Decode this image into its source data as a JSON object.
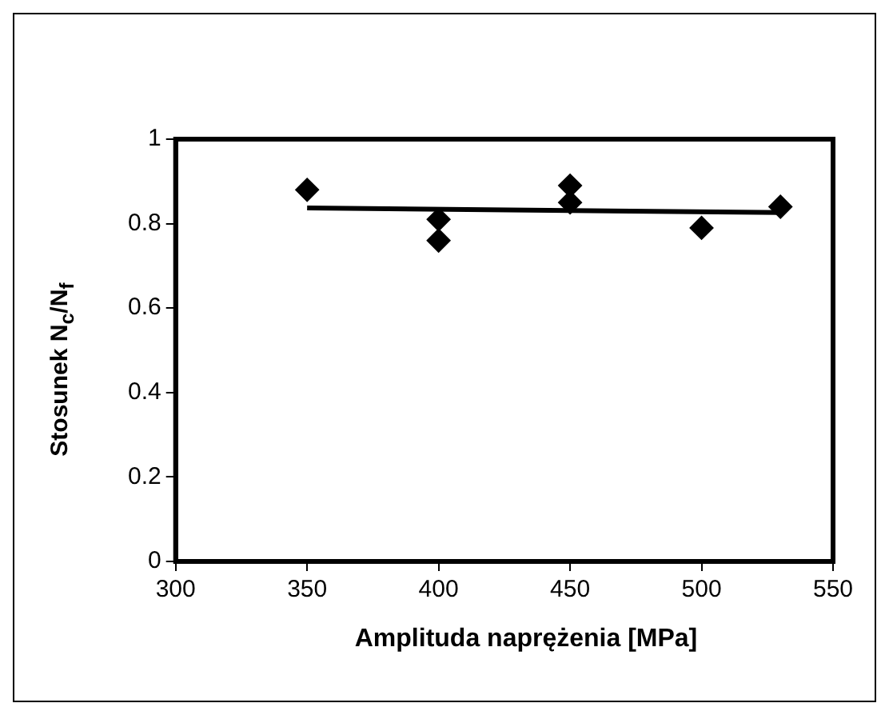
{
  "chart_data": {
    "type": "scatter",
    "xlabel": "Amplituda naprężenia [MPa]",
    "ylabel": "Stosunek N$_{c}$/N$_{f}$",
    "series": [
      {
        "color": "#000000",
        "marker": "diamond",
        "x": [
          350,
          400,
          400,
          450,
          450,
          500,
          530
        ],
        "values": [
          0.88,
          0.81,
          0.76,
          0.89,
          0.85,
          0.79,
          0.84
        ]
      },
      {
        "type": "line",
        "color": "#000000",
        "marker": "none",
        "x": [
          350,
          530
        ],
        "values": [
          0.837,
          0.826
        ]
      }
    ],
    "xlim": [
      300,
      550
    ],
    "xticks": [
      300,
      350,
      400,
      450,
      500,
      550
    ],
    "ylim": [
      0,
      1
    ],
    "yticks": [
      0,
      0.2,
      0.4,
      0.6,
      0.8,
      1
    ],
    "grid": false,
    "legend": false,
    "line_style": "solid"
  }
}
